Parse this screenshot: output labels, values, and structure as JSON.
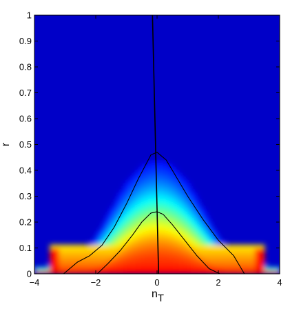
{
  "chart_data": {
    "type": "heatmap",
    "title": "",
    "xlabel": "n",
    "xlabel_subscript": "T",
    "ylabel": "r",
    "xlim": [
      -4,
      4
    ],
    "ylim": [
      0,
      1
    ],
    "x_ticks": [
      -4,
      -2,
      0,
      2,
      4
    ],
    "x_tick_labels": [
      "−4",
      "−2",
      "0",
      "2",
      "4"
    ],
    "y_ticks": [
      0,
      0.1,
      0.2,
      0.3,
      0.4,
      0.5,
      0.6,
      0.7,
      0.8,
      0.9,
      1
    ],
    "y_tick_labels": [
      "0",
      "0.1",
      "0.2",
      "0.3",
      "0.4",
      "0.5",
      "0.6",
      "0.7",
      "0.8",
      "0.9",
      "1"
    ],
    "colormap": "jet",
    "background_color": "#0000c8",
    "contours": [
      {
        "level": "outer",
        "x": [
          -3.05,
          -2.6,
          -2.2,
          -1.8,
          -1.4,
          -1.0,
          -0.6,
          -0.2,
          0.0,
          0.3,
          0.6,
          1.0,
          1.5,
          2.0,
          2.5,
          2.85
        ],
        "y": [
          0.0,
          0.045,
          0.07,
          0.11,
          0.18,
          0.27,
          0.37,
          0.46,
          0.47,
          0.44,
          0.38,
          0.3,
          0.21,
          0.13,
          0.07,
          0.0
        ]
      },
      {
        "level": "inner",
        "x": [
          -1.95,
          -1.6,
          -1.2,
          -0.8,
          -0.5,
          -0.2,
          0.0,
          0.2,
          0.5,
          0.9,
          1.3,
          1.7,
          2.05
        ],
        "y": [
          0.0,
          0.04,
          0.09,
          0.15,
          0.2,
          0.235,
          0.24,
          0.23,
          0.19,
          0.13,
          0.07,
          0.02,
          0.0
        ]
      }
    ],
    "vertical_line": {
      "x_top": -0.15,
      "x_bottom": 0.05
    }
  }
}
